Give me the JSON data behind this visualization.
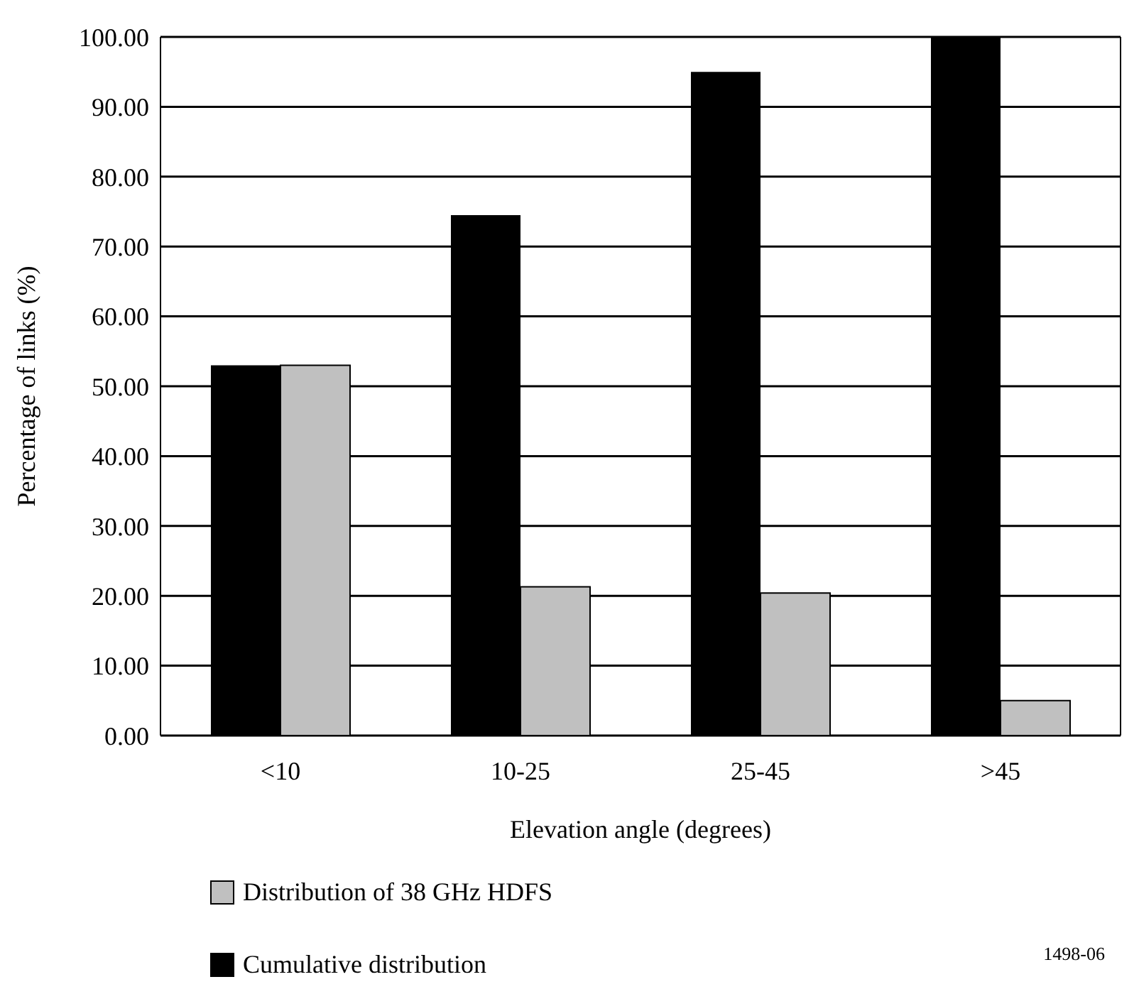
{
  "chart_data": {
    "type": "bar",
    "xlabel": "Elevation angle (degrees)",
    "ylabel": "Percentage of links (%)",
    "categories": [
      "<10",
      "10-25",
      "25-45",
      ">45"
    ],
    "series": [
      {
        "name": "Cumulative distribution",
        "color": "#000000",
        "values": [
          53,
          74.5,
          95,
          100
        ]
      },
      {
        "name": "Distribution of 38 GHz HDFS",
        "color": "#c0c0c0",
        "values": [
          53,
          21.3,
          20.4,
          5
        ]
      }
    ],
    "ylim": [
      0,
      100
    ],
    "yticks": [
      {
        "value": 0,
        "label": "0.00"
      },
      {
        "value": 10,
        "label": "10.00"
      },
      {
        "value": 20,
        "label": "20.00"
      },
      {
        "value": 30,
        "label": "30.00"
      },
      {
        "value": 40,
        "label": "40.00"
      },
      {
        "value": 50,
        "label": "50.00"
      },
      {
        "value": 60,
        "label": "60.00"
      },
      {
        "value": 70,
        "label": "70.00"
      },
      {
        "value": 80,
        "label": "80.00"
      },
      {
        "value": 90,
        "label": "90.00"
      },
      {
        "value": 100,
        "label": "100.00"
      }
    ],
    "grid": "y",
    "legend": "bottom",
    "annotations": [
      "1498-06"
    ]
  }
}
